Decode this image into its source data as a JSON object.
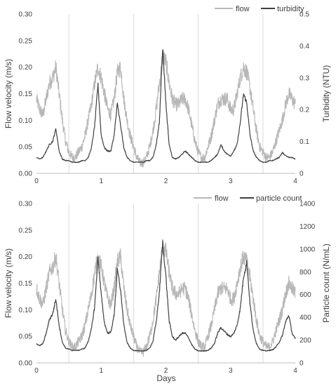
{
  "figure": {
    "xlabel_bottom": "Days"
  },
  "chart_data": [
    {
      "type": "line",
      "title": "",
      "xlabel": "",
      "ylabel": "Flow velocity (m/s)",
      "y2label": "Turbidity (NTU)",
      "xlim": [
        0,
        4
      ],
      "ylim": [
        0,
        0.3
      ],
      "y2lim": [
        0,
        0.5
      ],
      "xticks": [
        "0",
        "1",
        "2",
        "3",
        "4"
      ],
      "yticks": [
        "0.00",
        "0.05",
        "0.10",
        "0.15",
        "0.20",
        "0.25",
        "0.30"
      ],
      "y2ticks": [
        "0",
        "0.1",
        "0.2",
        "0.3",
        "0.4",
        "0.5"
      ],
      "vertical_gridlines_at": [
        0.5,
        1.5,
        2.5,
        3.5
      ],
      "legend_placement": "top-right",
      "series": [
        {
          "name": "flow",
          "axis": "left",
          "color": "#b7b7b7",
          "x": [
            0,
            0.05,
            0.1,
            0.15,
            0.2,
            0.25,
            0.3,
            0.35,
            0.4,
            0.45,
            0.5,
            0.55,
            0.6,
            0.65,
            0.7,
            0.75,
            0.8,
            0.85,
            0.9,
            0.95,
            1.0,
            1.05,
            1.1,
            1.15,
            1.2,
            1.25,
            1.3,
            1.35,
            1.4,
            1.45,
            1.5,
            1.55,
            1.6,
            1.65,
            1.7,
            1.75,
            1.8,
            1.85,
            1.9,
            1.95,
            2.0,
            2.05,
            2.1,
            2.15,
            2.2,
            2.25,
            2.3,
            2.35,
            2.4,
            2.45,
            2.5,
            2.55,
            2.6,
            2.65,
            2.7,
            2.75,
            2.8,
            2.85,
            2.9,
            2.95,
            3.0,
            3.05,
            3.1,
            3.15,
            3.2,
            3.25,
            3.3,
            3.35,
            3.4,
            3.45,
            3.5,
            3.55,
            3.6,
            3.65,
            3.7,
            3.75,
            3.8,
            3.85,
            3.9,
            3.95,
            4.0
          ],
          "values": [
            0.14,
            0.12,
            0.11,
            0.14,
            0.17,
            0.18,
            0.2,
            0.15,
            0.1,
            0.06,
            0.04,
            0.03,
            0.03,
            0.04,
            0.05,
            0.07,
            0.1,
            0.13,
            0.17,
            0.2,
            0.18,
            0.15,
            0.12,
            0.11,
            0.14,
            0.19,
            0.2,
            0.14,
            0.1,
            0.07,
            0.05,
            0.03,
            0.02,
            0.02,
            0.03,
            0.05,
            0.08,
            0.12,
            0.17,
            0.22,
            0.21,
            0.17,
            0.14,
            0.13,
            0.13,
            0.14,
            0.14,
            0.12,
            0.09,
            0.06,
            0.04,
            0.03,
            0.03,
            0.05,
            0.07,
            0.1,
            0.13,
            0.14,
            0.14,
            0.14,
            0.12,
            0.12,
            0.15,
            0.18,
            0.2,
            0.19,
            0.16,
            0.12,
            0.08,
            0.05,
            0.04,
            0.03,
            0.03,
            0.04,
            0.06,
            0.08,
            0.1,
            0.13,
            0.15,
            0.14,
            0.13
          ]
        },
        {
          "name": "turbidity",
          "axis": "right",
          "color": "#404040",
          "x": [
            0,
            0.05,
            0.1,
            0.15,
            0.2,
            0.25,
            0.3,
            0.35,
            0.4,
            0.45,
            0.5,
            0.55,
            0.6,
            0.65,
            0.7,
            0.75,
            0.8,
            0.85,
            0.9,
            0.95,
            1.0,
            1.05,
            1.1,
            1.15,
            1.2,
            1.25,
            1.3,
            1.35,
            1.4,
            1.45,
            1.5,
            1.55,
            1.6,
            1.65,
            1.7,
            1.75,
            1.8,
            1.85,
            1.9,
            1.95,
            2.0,
            2.05,
            2.1,
            2.15,
            2.2,
            2.25,
            2.3,
            2.35,
            2.4,
            2.45,
            2.5,
            2.55,
            2.6,
            2.65,
            2.7,
            2.75,
            2.8,
            2.85,
            2.9,
            2.95,
            3.0,
            3.05,
            3.1,
            3.15,
            3.2,
            3.25,
            3.3,
            3.35,
            3.4,
            3.45,
            3.5,
            3.55,
            3.6,
            3.65,
            3.7,
            3.75,
            3.8,
            3.85,
            3.9,
            3.95,
            4.0
          ],
          "values": [
            0.05,
            0.045,
            0.05,
            0.07,
            0.09,
            0.1,
            0.14,
            0.07,
            0.045,
            0.04,
            0.04,
            0.035,
            0.035,
            0.035,
            0.04,
            0.04,
            0.05,
            0.08,
            0.15,
            0.28,
            0.12,
            0.08,
            0.07,
            0.07,
            0.12,
            0.22,
            0.15,
            0.08,
            0.05,
            0.04,
            0.035,
            0.035,
            0.035,
            0.035,
            0.04,
            0.04,
            0.05,
            0.09,
            0.16,
            0.4,
            0.22,
            0.09,
            0.05,
            0.045,
            0.05,
            0.06,
            0.07,
            0.06,
            0.05,
            0.04,
            0.035,
            0.035,
            0.035,
            0.035,
            0.04,
            0.05,
            0.06,
            0.09,
            0.07,
            0.06,
            0.055,
            0.07,
            0.09,
            0.16,
            0.25,
            0.22,
            0.12,
            0.07,
            0.05,
            0.04,
            0.035,
            0.035,
            0.04,
            0.04,
            0.045,
            0.05,
            0.065,
            0.055,
            0.05,
            0.05,
            0.045
          ]
        }
      ]
    },
    {
      "type": "line",
      "title": "",
      "xlabel": "Days",
      "ylabel": "Flow velocity (m/s)",
      "y2label": "Particle count (N/mL)",
      "xlim": [
        0,
        4
      ],
      "ylim": [
        0,
        0.3
      ],
      "y2lim": [
        0,
        1400
      ],
      "xticks": [
        "0",
        "1",
        "2",
        "3",
        "4"
      ],
      "yticks": [
        "0.00",
        "0.05",
        "0.10",
        "0.15",
        "0.20",
        "0.25",
        "0.30"
      ],
      "y2ticks": [
        "0",
        "200",
        "400",
        "600",
        "800",
        "1000",
        "1200",
        "1400"
      ],
      "vertical_gridlines_at": [
        0.5,
        1.5,
        2.5,
        3.5
      ],
      "legend_placement": "top-right",
      "series": [
        {
          "name": "flow",
          "axis": "left",
          "color": "#b7b7b7",
          "x": [
            0,
            0.05,
            0.1,
            0.15,
            0.2,
            0.25,
            0.3,
            0.35,
            0.4,
            0.45,
            0.5,
            0.55,
            0.6,
            0.65,
            0.7,
            0.75,
            0.8,
            0.85,
            0.9,
            0.95,
            1.0,
            1.05,
            1.1,
            1.15,
            1.2,
            1.25,
            1.3,
            1.35,
            1.4,
            1.45,
            1.5,
            1.55,
            1.6,
            1.65,
            1.7,
            1.75,
            1.8,
            1.85,
            1.9,
            1.95,
            2.0,
            2.05,
            2.1,
            2.15,
            2.2,
            2.25,
            2.3,
            2.35,
            2.4,
            2.45,
            2.5,
            2.55,
            2.6,
            2.65,
            2.7,
            2.75,
            2.8,
            2.85,
            2.9,
            2.95,
            3.0,
            3.05,
            3.1,
            3.15,
            3.2,
            3.25,
            3.3,
            3.35,
            3.4,
            3.45,
            3.5,
            3.55,
            3.6,
            3.65,
            3.7,
            3.75,
            3.8,
            3.85,
            3.9,
            3.95,
            4.0
          ],
          "values": [
            0.14,
            0.12,
            0.11,
            0.14,
            0.17,
            0.18,
            0.2,
            0.15,
            0.1,
            0.06,
            0.04,
            0.03,
            0.03,
            0.04,
            0.05,
            0.07,
            0.1,
            0.13,
            0.17,
            0.2,
            0.18,
            0.15,
            0.12,
            0.11,
            0.14,
            0.19,
            0.2,
            0.14,
            0.1,
            0.07,
            0.05,
            0.03,
            0.02,
            0.02,
            0.03,
            0.05,
            0.08,
            0.12,
            0.17,
            0.22,
            0.21,
            0.17,
            0.14,
            0.13,
            0.13,
            0.14,
            0.14,
            0.12,
            0.09,
            0.06,
            0.04,
            0.03,
            0.03,
            0.05,
            0.07,
            0.1,
            0.13,
            0.14,
            0.14,
            0.14,
            0.12,
            0.12,
            0.15,
            0.18,
            0.2,
            0.19,
            0.16,
            0.12,
            0.08,
            0.05,
            0.04,
            0.03,
            0.03,
            0.04,
            0.06,
            0.08,
            0.1,
            0.13,
            0.15,
            0.14,
            0.13
          ]
        },
        {
          "name": "particle count",
          "axis": "right",
          "color": "#404040",
          "x": [
            0,
            0.05,
            0.1,
            0.15,
            0.2,
            0.25,
            0.3,
            0.35,
            0.4,
            0.45,
            0.5,
            0.55,
            0.6,
            0.65,
            0.7,
            0.75,
            0.8,
            0.85,
            0.9,
            0.95,
            1.0,
            1.05,
            1.1,
            1.15,
            1.2,
            1.25,
            1.3,
            1.35,
            1.4,
            1.45,
            1.5,
            1.55,
            1.6,
            1.65,
            1.7,
            1.75,
            1.8,
            1.85,
            1.9,
            1.95,
            2.0,
            2.05,
            2.1,
            2.15,
            2.2,
            2.25,
            2.3,
            2.35,
            2.4,
            2.45,
            2.5,
            2.55,
            2.6,
            2.65,
            2.7,
            2.75,
            2.8,
            2.85,
            2.9,
            2.95,
            3.0,
            3.05,
            3.1,
            3.15,
            3.2,
            3.25,
            3.3,
            3.35,
            3.4,
            3.45,
            3.5,
            3.55,
            3.6,
            3.65,
            3.7,
            3.75,
            3.8,
            3.85,
            3.9,
            3.95,
            4.0
          ],
          "values": [
            170,
            150,
            170,
            260,
            380,
            430,
            560,
            330,
            180,
            130,
            120,
            110,
            110,
            110,
            120,
            130,
            190,
            300,
            500,
            930,
            600,
            350,
            260,
            270,
            420,
            820,
            640,
            330,
            180,
            130,
            110,
            105,
            105,
            105,
            110,
            130,
            190,
            360,
            620,
            1060,
            760,
            370,
            230,
            200,
            230,
            260,
            260,
            220,
            160,
            120,
            105,
            105,
            105,
            110,
            130,
            170,
            260,
            310,
            280,
            250,
            230,
            260,
            330,
            480,
            760,
            880,
            520,
            280,
            170,
            120,
            110,
            105,
            110,
            115,
            140,
            180,
            240,
            360,
            420,
            260,
            210
          ]
        }
      ]
    }
  ]
}
